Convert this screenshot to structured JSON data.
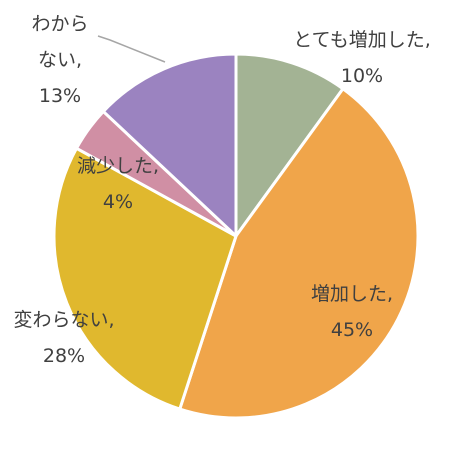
{
  "chart_data": {
    "type": "pie",
    "categories": [
      "とても増加した",
      "増加した",
      "変わらない",
      "減少した",
      "わからない"
    ],
    "values": [
      10,
      45,
      28,
      4,
      13
    ],
    "colors": [
      "#a3b394",
      "#f0a54a",
      "#e0b82e",
      "#d08fa4",
      "#9b83c0"
    ],
    "labels": [
      {
        "lines": [
          "とても増加した,",
          "10%"
        ]
      },
      {
        "lines": [
          "増加した,",
          "45%"
        ]
      },
      {
        "lines": [
          "変わらない,",
          "28%"
        ]
      },
      {
        "lines": [
          "減少した,",
          "4%"
        ]
      },
      {
        "lines": [
          "わから",
          "ない,",
          "13%"
        ]
      }
    ],
    "start_angle": "12 o'clock",
    "direction": "clockwise",
    "legend": "none"
  }
}
